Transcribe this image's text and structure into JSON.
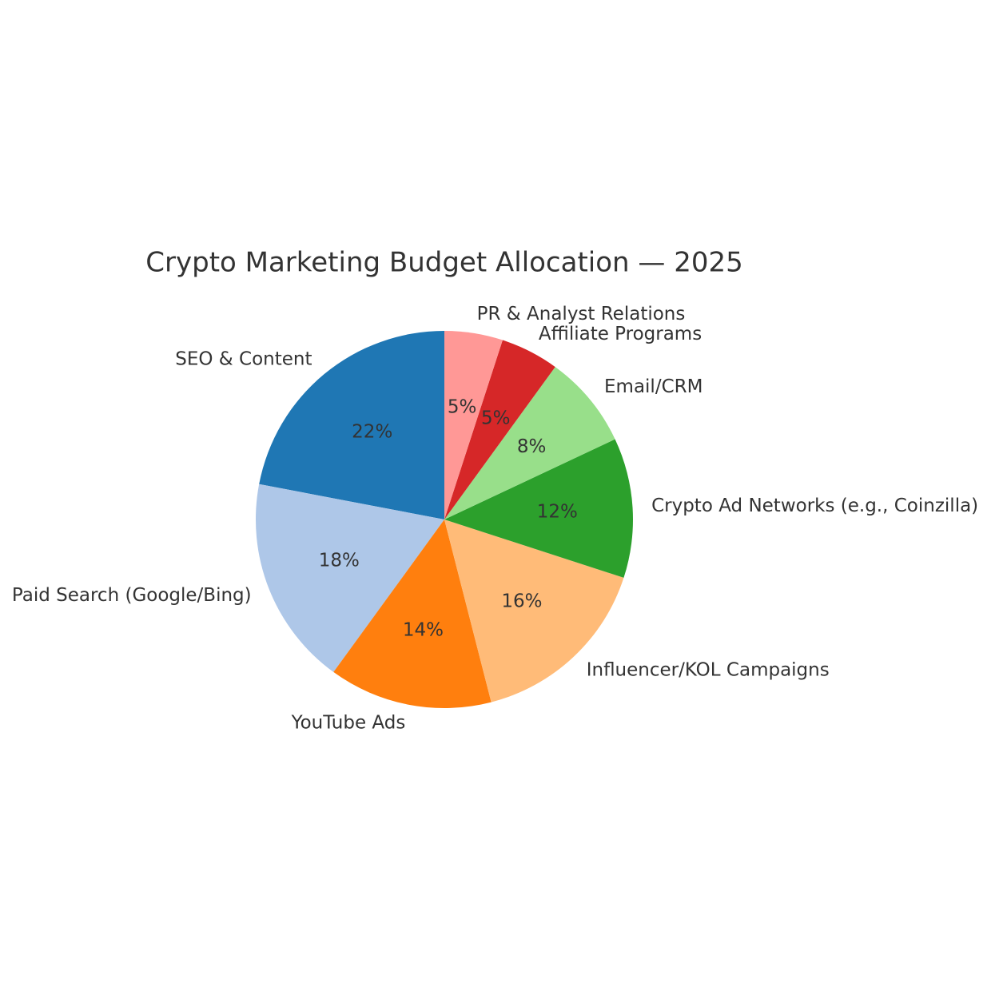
{
  "chart_data": {
    "type": "pie",
    "title": "Crypto Marketing Budget Allocation — 2025",
    "categories": [
      "SEO & Content",
      "Paid Search (Google/Bing)",
      "YouTube Ads",
      "Influencer/KOL Campaigns",
      "Crypto Ad Networks (e.g., Coinzilla)",
      "Email/CRM",
      "Affiliate Programs",
      "PR & Analyst Relations"
    ],
    "values": [
      22,
      18,
      14,
      16,
      12,
      8,
      5,
      5
    ],
    "value_labels": [
      "22%",
      "18%",
      "14%",
      "16%",
      "12%",
      "8%",
      "5%",
      "5%"
    ],
    "colors": [
      "#1f77b4",
      "#aec7e8",
      "#ff7f0e",
      "#ffbb78",
      "#2ca02c",
      "#98df8a",
      "#d62728",
      "#ff9896"
    ]
  }
}
